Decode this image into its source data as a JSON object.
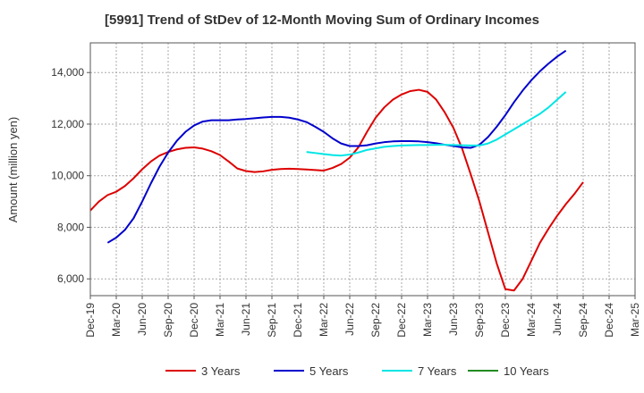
{
  "chart_data": {
    "type": "line",
    "title": "[5991]  Trend of StDev of 12-Month Moving Sum of Ordinary Incomes",
    "xlabel": "",
    "ylabel": "Amount (million yen)",
    "ylim": [
      5350,
      15150
    ],
    "yticks": [
      6000,
      8000,
      10000,
      12000,
      14000
    ],
    "ytick_labels": [
      "6,000",
      "8,000",
      "10,000",
      "12,000",
      "14,000"
    ],
    "xticks": [
      "Dec-19",
      "Mar-20",
      "Jun-20",
      "Sep-20",
      "Dec-20",
      "Mar-21",
      "Jun-21",
      "Sep-21",
      "Dec-21",
      "Mar-22",
      "Jun-22",
      "Sep-22",
      "Dec-22",
      "Mar-23",
      "Jun-23",
      "Sep-23",
      "Dec-23",
      "Mar-24",
      "Jun-24",
      "Sep-24",
      "Dec-24",
      "Mar-25"
    ],
    "grid": true,
    "legend_position": "bottom",
    "series": [
      {
        "name": "3 Years",
        "color": "#dd0000",
        "start_index": 0,
        "values": [
          8650,
          9000,
          9250,
          9380,
          9600,
          9900,
          10250,
          10550,
          10780,
          10920,
          11020,
          11080,
          11100,
          11050,
          10950,
          10800,
          10550,
          10280,
          10180,
          10140,
          10170,
          10230,
          10260,
          10270,
          10260,
          10240,
          10220,
          10200,
          10300,
          10450,
          10700,
          11100,
          11700,
          12250,
          12650,
          12950,
          13150,
          13280,
          13330,
          13250,
          12950,
          12450,
          11850,
          11050,
          10050,
          9000,
          7800,
          6600,
          5600,
          5550,
          6000,
          6700,
          7400,
          7950,
          8450,
          8900,
          9300,
          9750
        ]
      },
      {
        "name": "5 Years",
        "color": "#0000cc",
        "start_index": 2,
        "values": [
          7400,
          7600,
          7900,
          8350,
          9000,
          9700,
          10350,
          10900,
          11350,
          11700,
          11950,
          12100,
          12150,
          12150,
          12150,
          12180,
          12200,
          12230,
          12260,
          12280,
          12280,
          12250,
          12180,
          12080,
          11900,
          11700,
          11450,
          11250,
          11150,
          11150,
          11180,
          11250,
          11300,
          11330,
          11340,
          11340,
          11330,
          11300,
          11260,
          11200,
          11150,
          11100,
          11080,
          11200,
          11500,
          11900,
          12350,
          12850,
          13300,
          13700,
          14050,
          14350,
          14620,
          14850
        ]
      },
      {
        "name": "7 Years",
        "color": "#00e5e5",
        "start_index": 25,
        "values": [
          10920,
          10880,
          10840,
          10800,
          10780,
          10820,
          10900,
          11000,
          11060,
          11120,
          11150,
          11170,
          11180,
          11190,
          11190,
          11200,
          11200,
          11190,
          11180,
          11170,
          11170,
          11250,
          11400,
          11600,
          11800,
          12000,
          12200,
          12400,
          12650,
          12950,
          13250
        ]
      },
      {
        "name": "10 Years",
        "color": "#228B22",
        "start_index": 0,
        "values": []
      }
    ]
  }
}
